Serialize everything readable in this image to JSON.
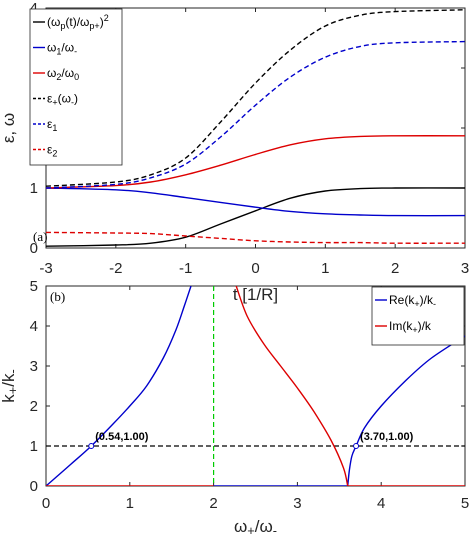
{
  "chart_data": [
    {
      "panel_label": "(a)",
      "type": "line",
      "xlabel": "t [1/R]",
      "ylabel": "ε, ω",
      "xlim": [
        -3,
        3
      ],
      "ylim": [
        0,
        4
      ],
      "xticks": [
        "-3",
        "-2",
        "-1",
        "0",
        "1",
        "2",
        "3"
      ],
      "yticks": [
        "0",
        "1",
        "2",
        "3",
        "4"
      ],
      "grid": false,
      "legend_position": "top-left",
      "series": [
        {
          "name": "(ωp(t)/ωp+)²",
          "legend_main": "(ω",
          "legend_parts": [
            [
              "p",
              "sub"
            ],
            [
              "(t)/ω",
              ""
            ],
            [
              "p+",
              "sub"
            ],
            [
              ")",
              ""
            ],
            [
              "2",
              "sup"
            ]
          ],
          "color": "#000000",
          "dash": "solid",
          "x": [
            -3,
            -2,
            -1.5,
            -1,
            -0.5,
            0,
            0.5,
            1,
            1.5,
            2,
            3
          ],
          "y": [
            0.03,
            0.05,
            0.08,
            0.18,
            0.4,
            0.62,
            0.83,
            0.95,
            0.99,
            1.0,
            1.0
          ]
        },
        {
          "name": "ω1/ω-",
          "legend_main": "ω",
          "legend_parts": [
            [
              "1",
              "sub"
            ],
            [
              "/ω",
              ""
            ],
            [
              "-",
              "sub"
            ]
          ],
          "color": "#0000cc",
          "dash": "solid",
          "x": [
            -3,
            -2,
            -1.5,
            -1,
            -0.5,
            0,
            0.5,
            1,
            1.5,
            2,
            3
          ],
          "y": [
            1.0,
            0.97,
            0.92,
            0.84,
            0.76,
            0.68,
            0.61,
            0.57,
            0.55,
            0.54,
            0.54
          ]
        },
        {
          "name": "ω2/ω0",
          "legend_main": "ω",
          "legend_parts": [
            [
              "2",
              "sub"
            ],
            [
              "/ω",
              ""
            ],
            [
              "0",
              "sub"
            ]
          ],
          "color": "#dd0000",
          "dash": "solid",
          "x": [
            -3,
            -2,
            -1.5,
            -1,
            -0.5,
            0,
            0.5,
            1,
            1.5,
            2,
            3
          ],
          "y": [
            1.0,
            1.04,
            1.1,
            1.22,
            1.38,
            1.56,
            1.72,
            1.82,
            1.86,
            1.87,
            1.87
          ]
        },
        {
          "name": "ε+(ω-)",
          "legend_main": "ε",
          "legend_parts": [
            [
              "+",
              "sub"
            ],
            [
              "(ω",
              ""
            ],
            [
              "-",
              "sub"
            ],
            [
              ")",
              ""
            ]
          ],
          "color": "#000000",
          "dash": "dashed",
          "x": [
            -3,
            -2,
            -1.5,
            -1,
            -0.5,
            0,
            0.5,
            1,
            1.5,
            2,
            3
          ],
          "y": [
            1.03,
            1.1,
            1.22,
            1.5,
            2.1,
            2.75,
            3.3,
            3.7,
            3.88,
            3.94,
            3.97
          ]
        },
        {
          "name": "ε1",
          "legend_main": "ε",
          "legend_parts": [
            [
              "1",
              "sub"
            ]
          ],
          "color": "#0000cc",
          "dash": "dashed",
          "x": [
            -3,
            -2,
            -1.5,
            -1,
            -0.5,
            0,
            0.5,
            1,
            1.5,
            2,
            3
          ],
          "y": [
            1.0,
            1.06,
            1.17,
            1.4,
            1.85,
            2.38,
            2.85,
            3.18,
            3.36,
            3.42,
            3.44
          ]
        },
        {
          "name": "ε2",
          "legend_main": "ε",
          "legend_parts": [
            [
              "2",
              "sub"
            ]
          ],
          "color": "#dd0000",
          "dash": "dashed",
          "x": [
            -3,
            -2,
            -1.5,
            -1,
            -0.5,
            0,
            0.5,
            1,
            1.5,
            2,
            3
          ],
          "y": [
            0.26,
            0.25,
            0.24,
            0.2,
            0.16,
            0.12,
            0.1,
            0.09,
            0.09,
            0.08,
            0.08
          ]
        }
      ]
    },
    {
      "panel_label": "(b)",
      "type": "line",
      "xlabel": "ω+/ω-",
      "ylabel": "k+/k-",
      "xlim": [
        0,
        5
      ],
      "ylim": [
        0,
        5
      ],
      "xticks": [
        "0",
        "1",
        "2",
        "3",
        "4",
        "5"
      ],
      "yticks": [
        "0",
        "1",
        "2",
        "3",
        "4",
        "5"
      ],
      "grid": false,
      "legend_position": "top-right",
      "series": [
        {
          "name": "Re(k+)/k-",
          "legend_main": "Re(k",
          "legend_parts": [
            [
              "+",
              "sub"
            ],
            [
              ")/k",
              ""
            ],
            [
              "-",
              "sub"
            ]
          ],
          "color": "#0000cc",
          "dash": "solid",
          "x": [
            0,
            0.3,
            0.54,
            0.8,
            1.0,
            1.2,
            1.4,
            1.55,
            1.65,
            1.73,
            2.0,
            3.0,
            3.6,
            3.62,
            3.65,
            3.7,
            3.8,
            4.0,
            4.3,
            4.6,
            5.0
          ],
          "y": [
            0,
            0.55,
            1.0,
            1.55,
            2.0,
            2.5,
            3.2,
            3.9,
            4.5,
            5.0,
            0,
            0,
            0,
            0.4,
            0.75,
            1.0,
            1.45,
            2.0,
            2.65,
            3.2,
            3.75
          ]
        },
        {
          "name": "Im(k+)/k",
          "legend_main": "Im(k",
          "legend_parts": [
            [
              "+",
              "sub"
            ],
            [
              ")/k",
              ""
            ]
          ],
          "color": "#dd0000",
          "dash": "solid",
          "x": [
            0,
            1.5,
            2.0,
            2.27,
            2.4,
            2.6,
            2.8,
            3.0,
            3.2,
            3.4,
            3.55,
            3.6,
            4.0,
            5.0
          ],
          "y": [
            0,
            0,
            0,
            5.0,
            4.25,
            3.55,
            3.0,
            2.45,
            1.85,
            1.15,
            0.45,
            0,
            0,
            0
          ]
        }
      ],
      "reference_lines": [
        {
          "orientation": "horizontal",
          "value": 1.0,
          "color": "#000000",
          "dash": "dashed"
        },
        {
          "orientation": "vertical",
          "value": 2.0,
          "color": "#00cc00",
          "dash": "dashed"
        }
      ],
      "annotations": [
        {
          "text": "(0.54,1.00)",
          "x": 0.54,
          "y": 1.0
        },
        {
          "text": "(3.70,1.00)",
          "x": 3.7,
          "y": 1.0
        }
      ]
    }
  ]
}
